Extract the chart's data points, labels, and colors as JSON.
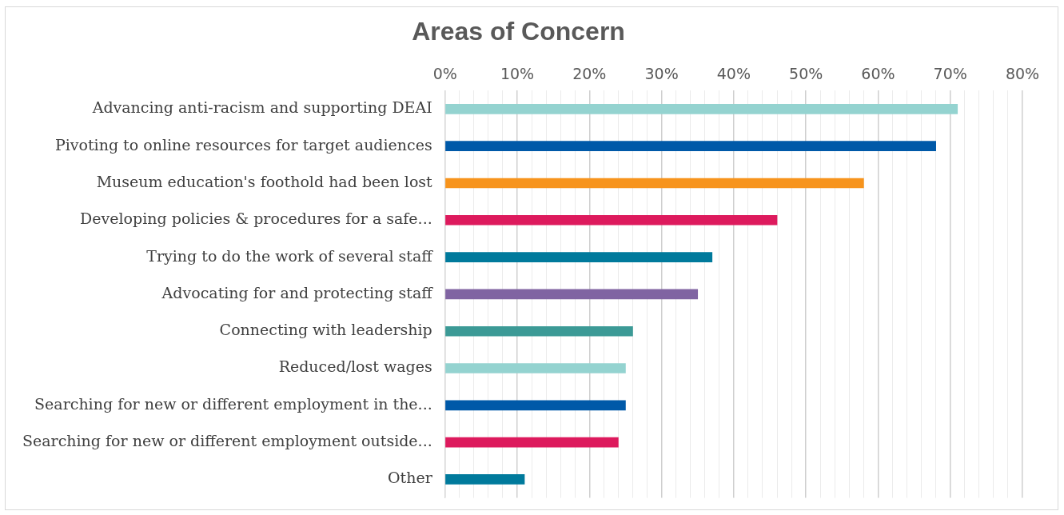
{
  "chart_data": {
    "type": "bar",
    "orientation": "horizontal",
    "title": "Areas of Concern",
    "categories": [
      "Advancing anti-racism and supporting DEAI",
      "Pivoting to online resources for target audiences",
      "Museum education's foothold had been lost",
      "Developing policies & procedures for a safe...",
      "Trying to do the work of several staff",
      "Advocating for and protecting staff",
      "Connecting with leadership",
      "Reduced/lost wages",
      "Searching for new or different employment in the...",
      "Searching for new or different employment outside...",
      "Other"
    ],
    "values": [
      71,
      68,
      58,
      46,
      37,
      35,
      26,
      25,
      25,
      24,
      11
    ],
    "colors": [
      "#94d3d0",
      "#0059a8",
      "#f7941d",
      "#dd1a5d",
      "#007a9c",
      "#8064a2",
      "#3c9a96",
      "#94d3d0",
      "#0059a8",
      "#dd1a5d",
      "#007a9c"
    ],
    "xlim": [
      0,
      80
    ],
    "xticks": [
      {
        "value": 0,
        "label": "0%"
      },
      {
        "value": 2,
        "label": null
      },
      {
        "value": 4,
        "label": null
      },
      {
        "value": 6,
        "label": null
      },
      {
        "value": 8,
        "label": null
      },
      {
        "value": 10,
        "label": "10%"
      },
      {
        "value": 12,
        "label": null
      },
      {
        "value": 14,
        "label": null
      },
      {
        "value": 16,
        "label": null
      },
      {
        "value": 18,
        "label": null
      },
      {
        "value": 20,
        "label": "20%"
      },
      {
        "value": 22,
        "label": null
      },
      {
        "value": 24,
        "label": null
      },
      {
        "value": 26,
        "label": null
      },
      {
        "value": 28,
        "label": null
      },
      {
        "value": 30,
        "label": "30%"
      },
      {
        "value": 32,
        "label": null
      },
      {
        "value": 34,
        "label": null
      },
      {
        "value": 36,
        "label": null
      },
      {
        "value": 38,
        "label": null
      },
      {
        "value": 40,
        "label": "40%"
      },
      {
        "value": 42,
        "label": null
      },
      {
        "value": 44,
        "label": null
      },
      {
        "value": 46,
        "label": null
      },
      {
        "value": 48,
        "label": null
      },
      {
        "value": 50,
        "label": "50%"
      },
      {
        "value": 52,
        "label": null
      },
      {
        "value": 54,
        "label": null
      },
      {
        "value": 56,
        "label": null
      },
      {
        "value": 58,
        "label": null
      },
      {
        "value": 60,
        "label": "60%"
      },
      {
        "value": 62,
        "label": null
      },
      {
        "value": 64,
        "label": null
      },
      {
        "value": 66,
        "label": null
      },
      {
        "value": 68,
        "label": null
      },
      {
        "value": 70,
        "label": "70%"
      },
      {
        "value": 72,
        "label": null
      },
      {
        "value": 74,
        "label": null
      },
      {
        "value": 76,
        "label": null
      },
      {
        "value": 78,
        "label": null
      },
      {
        "value": 80,
        "label": "80%"
      }
    ],
    "grid": "x",
    "legend": false
  }
}
